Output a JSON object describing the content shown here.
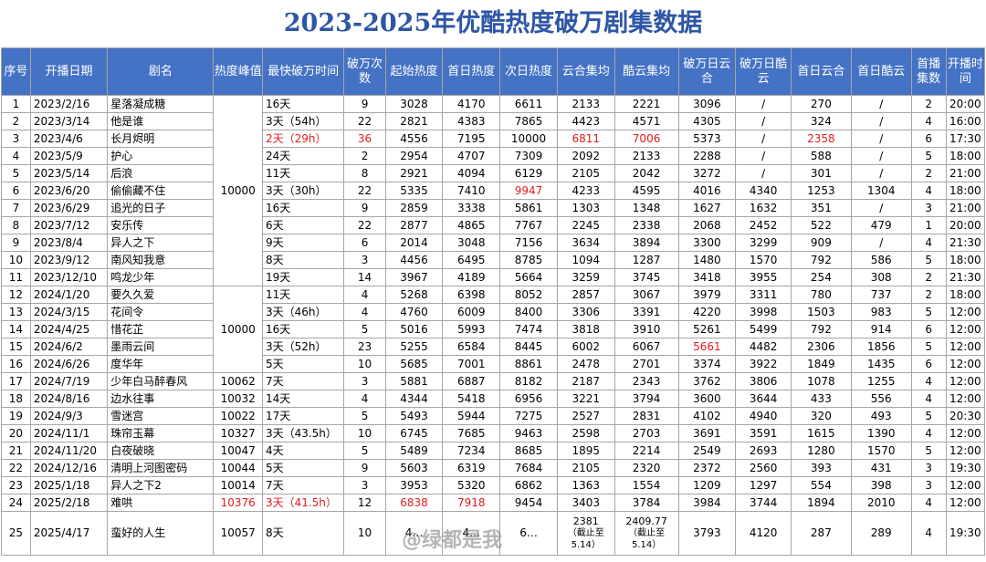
{
  "title": "2023-2025年优酷热度破万剧集数据",
  "headers": [
    "序号",
    "开播日期",
    "剧名",
    "热度峰值",
    "最快破万时间",
    "破万次数",
    "起始热度",
    "首日热度",
    "次日热度",
    "云合集均",
    "酷云集均",
    "破万日云合",
    "破万日酷云",
    "首日云合",
    "首日酷云",
    "首播集数",
    "开播时间"
  ],
  "rows": [
    [
      "1",
      "2023/2/16",
      "星落凝成糖",
      "",
      "16天",
      "9",
      "3028",
      "4170",
      "6611",
      "2133",
      "2221",
      "3096",
      "/",
      "270",
      "/",
      "2",
      "20:00"
    ],
    [
      "2",
      "2023/3/14",
      "他是谁",
      "",
      "3天（54h）",
      "22",
      "2821",
      "4383",
      "7865",
      "4423",
      "4571",
      "4305",
      "/",
      "324",
      "/",
      "4",
      "16:00"
    ],
    [
      "3",
      "2023/4/6",
      "长月烬明",
      "",
      "2天（29h）",
      "36",
      "4556",
      "7195",
      "10000",
      "6811",
      "7006",
      "5373",
      "/",
      "2358",
      "/",
      "6",
      "17:30"
    ],
    [
      "4",
      "2023/5/9",
      "护心",
      "",
      "24天",
      "2",
      "2954",
      "4707",
      "7309",
      "2092",
      "2133",
      "2288",
      "/",
      "588",
      "/",
      "5",
      "18:00"
    ],
    [
      "5",
      "2023/5/14",
      "后浪",
      "",
      "11天",
      "8",
      "2921",
      "4094",
      "6129",
      "2105",
      "2042",
      "3272",
      "/",
      "301",
      "/",
      "2",
      "21:00"
    ],
    [
      "6",
      "2023/6/20",
      "偷偷藏不住",
      "",
      "3天（30h）",
      "22",
      "5335",
      "7410",
      "9947",
      "4233",
      "4595",
      "4016",
      "4340",
      "1253",
      "1304",
      "4",
      "18:00"
    ],
    [
      "7",
      "2023/6/29",
      "追光的日子",
      "",
      "16天",
      "9",
      "2859",
      "3338",
      "5861",
      "1303",
      "1348",
      "1627",
      "1632",
      "351",
      "/",
      "3",
      "21:00"
    ],
    [
      "8",
      "2023/7/12",
      "安乐传",
      "",
      "6天",
      "22",
      "2877",
      "4865",
      "7767",
      "2245",
      "2338",
      "2068",
      "2452",
      "522",
      "479",
      "1",
      "20:00"
    ],
    [
      "9",
      "2023/8/4",
      "异人之下",
      "",
      "9天",
      "6",
      "2014",
      "3048",
      "7156",
      "3634",
      "3894",
      "3300",
      "3299",
      "909",
      "/",
      "4",
      "21:30"
    ],
    [
      "10",
      "2023/9/12",
      "南风知我意",
      "",
      "8天",
      "3",
      "4456",
      "6495",
      "8785",
      "1094",
      "1287",
      "1480",
      "1570",
      "792",
      "586",
      "5",
      "18:00"
    ],
    [
      "11",
      "2023/12/10",
      "鸣龙少年",
      "",
      "19天",
      "14",
      "3967",
      "4189",
      "5664",
      "3259",
      "3745",
      "3418",
      "3955",
      "254",
      "308",
      "2",
      "21:30"
    ],
    [
      "12",
      "2024/1/20",
      "要久久爱",
      "",
      "11天",
      "4",
      "5268",
      "6398",
      "8052",
      "2857",
      "3067",
      "3979",
      "3311",
      "780",
      "737",
      "2",
      "18:00"
    ],
    [
      "13",
      "2024/3/15",
      "花间令",
      "",
      "3天（46h）",
      "4",
      "4760",
      "6009",
      "8400",
      "3306",
      "3391",
      "4220",
      "3998",
      "1503",
      "983",
      "5",
      "12:00"
    ],
    [
      "14",
      "2024/4/25",
      "惜花芷",
      "",
      "16天",
      "5",
      "5016",
      "5993",
      "7474",
      "3818",
      "3910",
      "5261",
      "5499",
      "792",
      "914",
      "6",
      "12:00"
    ],
    [
      "15",
      "2024/6/2",
      "墨雨云间",
      "",
      "3天（52h）",
      "23",
      "5255",
      "6584",
      "8445",
      "6002",
      "6067",
      "5661",
      "4482",
      "2306",
      "1856",
      "5",
      "12:00"
    ],
    [
      "16",
      "2024/6/26",
      "度华年",
      "",
      "5天",
      "10",
      "5685",
      "7001",
      "8861",
      "2478",
      "2701",
      "3374",
      "3922",
      "1849",
      "1435",
      "6",
      "12:00"
    ],
    [
      "17",
      "2024/7/19",
      "少年白马醉春风",
      "10062",
      "7天",
      "3",
      "5881",
      "6887",
      "8182",
      "2187",
      "2343",
      "3762",
      "3806",
      "1078",
      "1255",
      "4",
      "12:00"
    ],
    [
      "18",
      "2024/8/16",
      "边水往事",
      "10032",
      "14天",
      "4",
      "4344",
      "5418",
      "6956",
      "3221",
      "3794",
      "3600",
      "3644",
      "433",
      "556",
      "4",
      "12:00"
    ],
    [
      "19",
      "2024/9/3",
      "雪迷宫",
      "10022",
      "17天",
      "5",
      "5493",
      "5944",
      "7275",
      "2527",
      "2831",
      "4102",
      "4940",
      "320",
      "493",
      "5",
      "20:30"
    ],
    [
      "20",
      "2024/11/1",
      "珠帘玉幕",
      "10327",
      "3天（43.5h）",
      "10",
      "6745",
      "7685",
      "9463",
      "2598",
      "2703",
      "3691",
      "3591",
      "1615",
      "1390",
      "4",
      "12:00"
    ],
    [
      "21",
      "2024/11/20",
      "白夜破晓",
      "10047",
      "4天",
      "5",
      "5489",
      "7234",
      "8685",
      "1895",
      "2214",
      "2549",
      "2693",
      "1280",
      "1570",
      "5",
      "12:00"
    ],
    [
      "22",
      "2024/12/16",
      "清明上河图密码",
      "10044",
      "5天",
      "9",
      "5603",
      "6319",
      "7684",
      "2105",
      "2320",
      "2372",
      "2560",
      "393",
      "431",
      "3",
      "19:30"
    ],
    [
      "23",
      "2025/1/18",
      "异人之下2",
      "10014",
      "7天",
      "3",
      "3953",
      "5320",
      "6862",
      "1363",
      "1554",
      "1209",
      "1297",
      "554",
      "398",
      "3",
      "12:00"
    ],
    [
      "24",
      "2025/2/18",
      "难哄",
      "10376",
      "3天（41.5h）",
      "12",
      "6838",
      "7918",
      "9454",
      "3403",
      "3784",
      "3984",
      "3744",
      "1894",
      "2010",
      "4",
      "12:00"
    ]
  ],
  "heat_merged": {
    "label": "10000"
  },
  "row25": {
    "idx": "25",
    "date": "2025/4/17",
    "name": "蛮好的人生",
    "peak": "10057",
    "fastest": "8天",
    "count": "10",
    "start": "4…",
    "day1": "4…",
    "day2": "6…",
    "yunhe_top": "2381",
    "yunhe_note": "（截止至 5.14）",
    "kuyun_top": "2409.77",
    "kuyun_note": "（截止至 5.14）",
    "pw_yunhe": "3793",
    "pw_kuyun": "4120",
    "d1_yunhe": "287",
    "d1_kuyun": "289",
    "eps": "4",
    "time": "19:30"
  },
  "watermark": "@绿都是我",
  "colors": {
    "header_bg": "#4472c4",
    "title": "#2e56a6",
    "highlight": "#e01b1b"
  }
}
